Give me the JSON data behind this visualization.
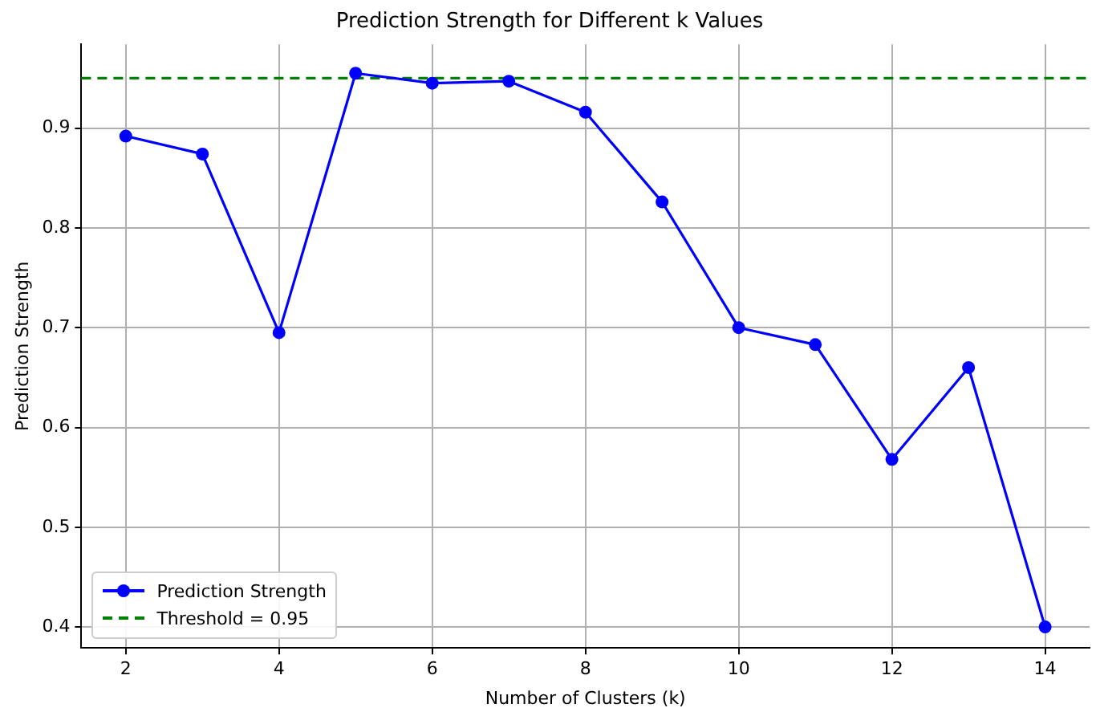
{
  "chart_data": {
    "type": "line",
    "title": "Prediction Strength for Different k Values",
    "xlabel": "Number of Clusters (k)",
    "ylabel": "Prediction Strength",
    "x": [
      2,
      3,
      4,
      5,
      6,
      7,
      8,
      9,
      10,
      11,
      12,
      13,
      14
    ],
    "series": [
      {
        "name": "Prediction Strength",
        "color": "#0000ff",
        "values": [
          0.892,
          0.874,
          0.695,
          0.955,
          0.945,
          0.947,
          0.916,
          0.826,
          0.7,
          0.683,
          0.568,
          0.66,
          0.4
        ]
      }
    ],
    "ref_lines": [
      {
        "axis": "y",
        "value": 0.95,
        "label": "Threshold = 0.95",
        "color": "#008000",
        "line_style": "dashed"
      }
    ],
    "xlim": [
      1.42,
      14.58
    ],
    "ylim": [
      0.379,
      0.984
    ],
    "xticks": [
      2,
      4,
      6,
      8,
      10,
      12,
      14
    ],
    "yticks": [
      0.4,
      0.5,
      0.6,
      0.7,
      0.8,
      0.9
    ],
    "grid": true,
    "legend": "bottom left",
    "marker": "circle",
    "line_style": "solid"
  }
}
